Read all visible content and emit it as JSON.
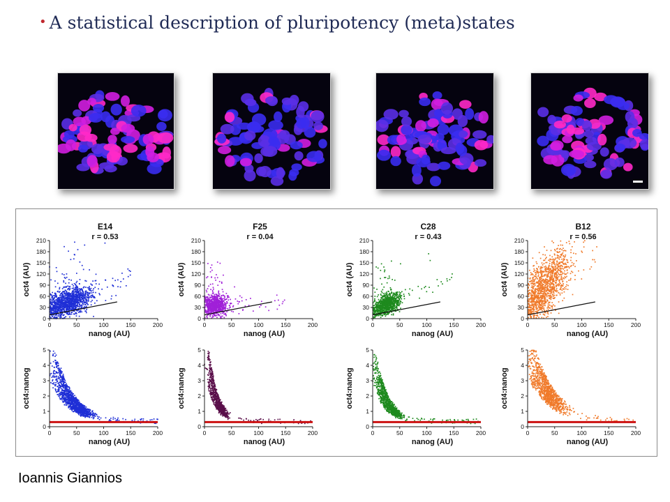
{
  "slide": {
    "bullet": "•",
    "title": "A statistical description of pluripotency (meta)states",
    "author": "Ioannis Giannios"
  },
  "images": [
    {
      "name": "E14",
      "style": "bright magenta nuclei among blue nuclei"
    },
    {
      "name": "F25",
      "style": "mostly blue nuclei, few magenta"
    },
    {
      "name": "C28",
      "style": "mixed magenta and blue nuclei"
    },
    {
      "name": "B12",
      "style": "dense magenta and blue nuclei",
      "scale_bar": true
    }
  ],
  "chart_data": [
    {
      "type": "scatter",
      "title": "E14",
      "subtitle": "r = 0.53",
      "xlabel": "nanog (AU)",
      "ylabel": "oct4 (AU)",
      "xlim": [
        0,
        200
      ],
      "ylim": [
        0,
        210
      ],
      "xticks": [
        0,
        50,
        100,
        150,
        200
      ],
      "yticks": [
        0,
        30,
        60,
        90,
        120,
        150,
        180,
        210
      ],
      "color": "#1f2fd6",
      "reference_line": {
        "x": [
          0,
          125
        ],
        "y": [
          10,
          45
        ]
      },
      "cluster": {
        "x_center": 35,
        "x_spread": 22,
        "y_base": 25,
        "slope": 0.55,
        "y_spread": 18,
        "n": 1400
      }
    },
    {
      "type": "scatter",
      "title": "F25",
      "subtitle": "r = 0.04",
      "xlabel": "nanog (AU)",
      "ylabel": "oct4 (AU)",
      "xlim": [
        0,
        200
      ],
      "ylim": [
        0,
        210
      ],
      "xticks": [
        0,
        50,
        100,
        150,
        200
      ],
      "yticks": [
        0,
        30,
        60,
        90,
        120,
        150,
        180,
        210
      ],
      "color": "#a020d8",
      "reference_line": {
        "x": [
          0,
          125
        ],
        "y": [
          10,
          45
        ]
      },
      "cluster": {
        "x_center": 20,
        "x_spread": 12,
        "y_base": 35,
        "slope": 0.05,
        "y_spread": 14,
        "n": 900
      }
    },
    {
      "type": "scatter",
      "title": "C28",
      "subtitle": "r = 0.43",
      "xlabel": "nanog (AU)",
      "ylabel": "oct4 (AU)",
      "xlim": [
        0,
        200
      ],
      "ylim": [
        0,
        210
      ],
      "xticks": [
        0,
        50,
        100,
        150,
        200
      ],
      "yticks": [
        0,
        30,
        60,
        90,
        120,
        150,
        180,
        210
      ],
      "color": "#1e8a1e",
      "reference_line": {
        "x": [
          0,
          125
        ],
        "y": [
          10,
          45
        ]
      },
      "cluster": {
        "x_center": 25,
        "x_spread": 13,
        "y_base": 22,
        "slope": 0.6,
        "y_spread": 14,
        "n": 1000
      }
    },
    {
      "type": "scatter",
      "title": "B12",
      "subtitle": "r = 0.56",
      "xlabel": "nanog (AU)",
      "ylabel": "oct4 (AU)",
      "xlim": [
        0,
        200
      ],
      "ylim": [
        0,
        210
      ],
      "xticks": [
        0,
        50,
        100,
        150,
        200
      ],
      "yticks": [
        0,
        30,
        60,
        90,
        120,
        150,
        180,
        210
      ],
      "color": "#f07a2a",
      "reference_line": {
        "x": [
          0,
          125
        ],
        "y": [
          10,
          45
        ]
      },
      "cluster": {
        "x_center": 30,
        "x_spread": 25,
        "y_base": 40,
        "slope": 1.4,
        "y_spread": 38,
        "n": 1300
      }
    },
    {
      "type": "scatter",
      "title": "",
      "xlabel": "nanog (AU)",
      "ylabel": "oct4:nanog",
      "xlim": [
        0,
        200
      ],
      "ylim": [
        0,
        5
      ],
      "xticks": [
        0,
        50,
        100,
        150,
        200
      ],
      "yticks": [
        0,
        1,
        2,
        3,
        4,
        5
      ],
      "color": "#1f2fd6",
      "reference_line": {
        "y": 0.3,
        "color": "#cc1111"
      },
      "cluster": {
        "x_center": 40,
        "x_spread": 25,
        "decay": 0.03,
        "amp": 4.5,
        "n": 1200
      }
    },
    {
      "type": "scatter",
      "title": "",
      "xlabel": "nanog (AU)",
      "ylabel": "oct4:nanog",
      "xlim": [
        0,
        200
      ],
      "ylim": [
        0,
        5
      ],
      "xticks": [
        0,
        50,
        100,
        150,
        200
      ],
      "yticks": [
        0,
        1,
        2,
        3,
        4,
        5
      ],
      "color": "#5a0f4a",
      "reference_line": {
        "y": 0.3,
        "color": "#cc1111"
      },
      "cluster": {
        "x_center": 22,
        "x_spread": 12,
        "decay": 0.06,
        "amp": 5.5,
        "n": 800
      }
    },
    {
      "type": "scatter",
      "title": "",
      "xlabel": "nanog (AU)",
      "ylabel": "oct4:nanog",
      "xlim": [
        0,
        200
      ],
      "ylim": [
        0,
        5
      ],
      "xticks": [
        0,
        50,
        100,
        150,
        200
      ],
      "yticks": [
        0,
        1,
        2,
        3,
        4,
        5
      ],
      "color": "#1e8a1e",
      "reference_line": {
        "y": 0.3,
        "color": "#cc1111"
      },
      "cluster": {
        "x_center": 28,
        "x_spread": 14,
        "decay": 0.045,
        "amp": 4.2,
        "n": 900
      }
    },
    {
      "type": "scatter",
      "title": "",
      "xlabel": "nanog (AU)",
      "ylabel": "oct4:nanog",
      "xlim": [
        0,
        200
      ],
      "ylim": [
        0,
        5
      ],
      "xticks": [
        0,
        50,
        100,
        150,
        200
      ],
      "yticks": [
        0,
        1,
        2,
        3,
        4,
        5
      ],
      "color": "#f07a2a",
      "reference_line": {
        "y": 0.3,
        "color": "#cc1111"
      },
      "cluster": {
        "x_center": 35,
        "x_spread": 25,
        "decay": 0.025,
        "amp": 4.8,
        "n": 1000
      }
    }
  ]
}
